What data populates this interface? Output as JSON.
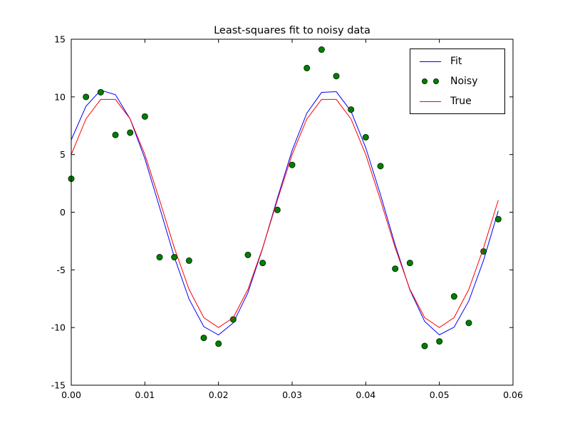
{
  "chart_data": {
    "type": "line",
    "title": "Least-squares fit to noisy data",
    "xlabel": "",
    "ylabel": "",
    "xlim": [
      0.0,
      0.06
    ],
    "ylim": [
      -15,
      15
    ],
    "xticks": [
      "0.00",
      "0.01",
      "0.02",
      "0.03",
      "0.04",
      "0.05",
      "0.06"
    ],
    "yticks": [
      "15",
      "10",
      "5",
      "0",
      "-5",
      "-10",
      "-15"
    ],
    "grid": false,
    "legend": {
      "position": "upper right"
    },
    "x": [
      0.0,
      0.002,
      0.004,
      0.006,
      0.008,
      0.01,
      0.012,
      0.014,
      0.016,
      0.018,
      0.02,
      0.022,
      0.024,
      0.026,
      0.028,
      0.03,
      0.032,
      0.034,
      0.036,
      0.038,
      0.04,
      0.042,
      0.044,
      0.046,
      0.048,
      0.05,
      0.052,
      0.054,
      0.056,
      0.058
    ],
    "series": [
      {
        "name": "Fit",
        "type": "line",
        "color": "#0000ff",
        "values": [
          6.27,
          9.19,
          10.58,
          10.19,
          8.08,
          4.65,
          0.42,
          -3.89,
          -7.53,
          -9.92,
          -10.64,
          -9.6,
          -6.98,
          -3.12,
          1.22,
          5.36,
          8.59,
          10.39,
          10.45,
          8.75,
          5.59,
          1.52,
          -2.84,
          -6.75,
          -9.47,
          -10.63,
          -9.97,
          -7.69,
          -4.17,
          0.12
        ]
      },
      {
        "name": "Noisy",
        "type": "scatter",
        "color": "#008000",
        "edge_color": "#002b00",
        "values": [
          2.9,
          10.0,
          10.4,
          6.7,
          6.9,
          8.3,
          -3.9,
          -3.9,
          -4.2,
          -10.9,
          -11.4,
          -9.3,
          -3.7,
          -4.4,
          0.2,
          4.1,
          12.5,
          14.1,
          11.8,
          8.9,
          6.5,
          4.0,
          -4.9,
          -4.4,
          -11.6,
          -11.2,
          -7.3,
          -9.6,
          -3.4,
          -0.6
        ]
      },
      {
        "name": "True",
        "type": "line",
        "color": "#ff0000",
        "values": [
          5.0,
          8.09,
          9.78,
          9.78,
          8.09,
          5.0,
          1.05,
          -3.09,
          -6.69,
          -9.14,
          -10.0,
          -9.14,
          -6.69,
          -3.09,
          1.05,
          5.0,
          8.09,
          9.78,
          9.78,
          8.09,
          5.0,
          1.05,
          -3.09,
          -6.69,
          -9.14,
          -10.0,
          -9.14,
          -6.69,
          -3.09,
          1.05
        ]
      }
    ]
  }
}
